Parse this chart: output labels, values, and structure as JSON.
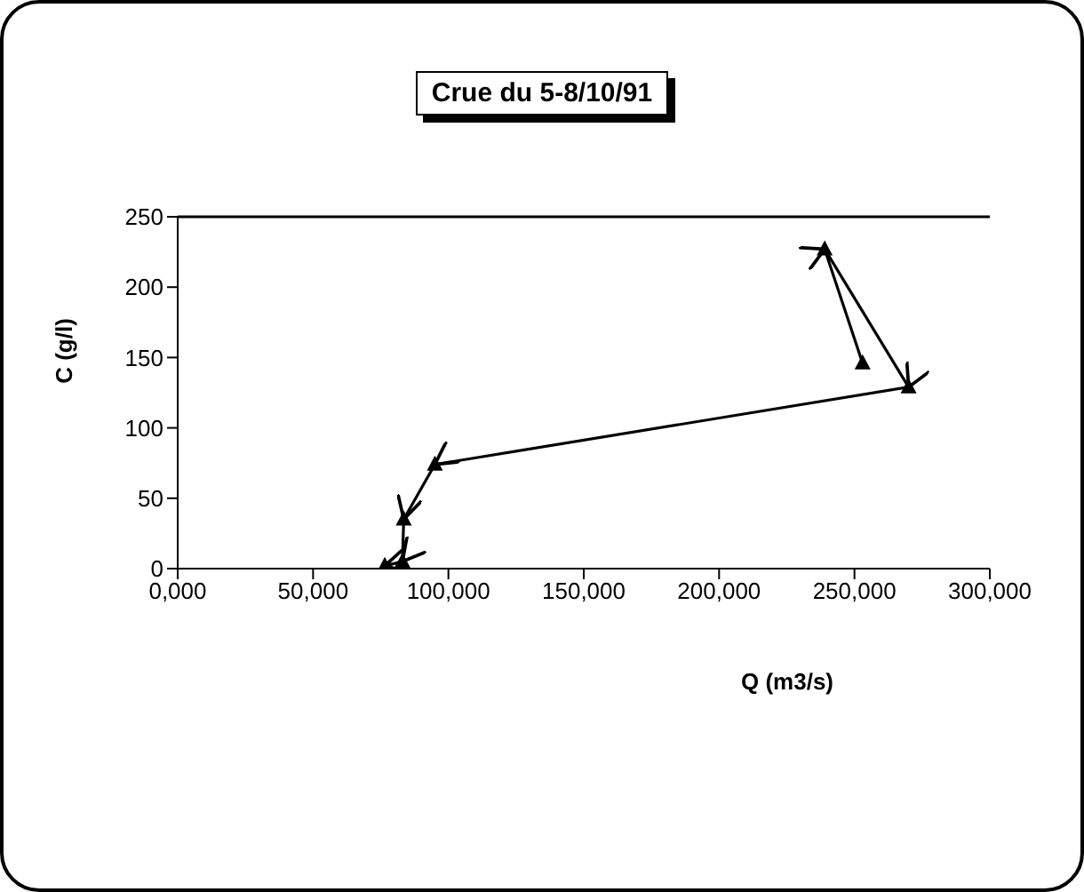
{
  "chart_data": {
    "type": "line",
    "title": "Crue du 5-8/10/91",
    "xlabel": "Q (m3/s)",
    "ylabel": "C (g/l)",
    "x": [
      253000,
      239000,
      270000,
      95000,
      83500,
      83000,
      76500
    ],
    "series": [
      {
        "color": "#000000",
        "values": [
          146,
          227,
          129,
          74,
          35,
          5,
          2
        ]
      }
    ],
    "xlim": [
      0,
      300000
    ],
    "xticks": [
      {
        "value": 0,
        "label": "0,000"
      },
      {
        "value": 50000,
        "label": "50,000"
      },
      {
        "value": 100000,
        "label": "100,000"
      },
      {
        "value": 150000,
        "label": "150,000"
      },
      {
        "value": 200000,
        "label": "200,000"
      },
      {
        "value": 250000,
        "label": "250,000"
      },
      {
        "value": 300000,
        "label": "300,000"
      }
    ],
    "ylim": [
      0,
      250
    ],
    "yticks": [
      0,
      50,
      100,
      150,
      200,
      250
    ],
    "grid": false,
    "legend": false,
    "marker": "triangle",
    "line_style": "solid"
  }
}
